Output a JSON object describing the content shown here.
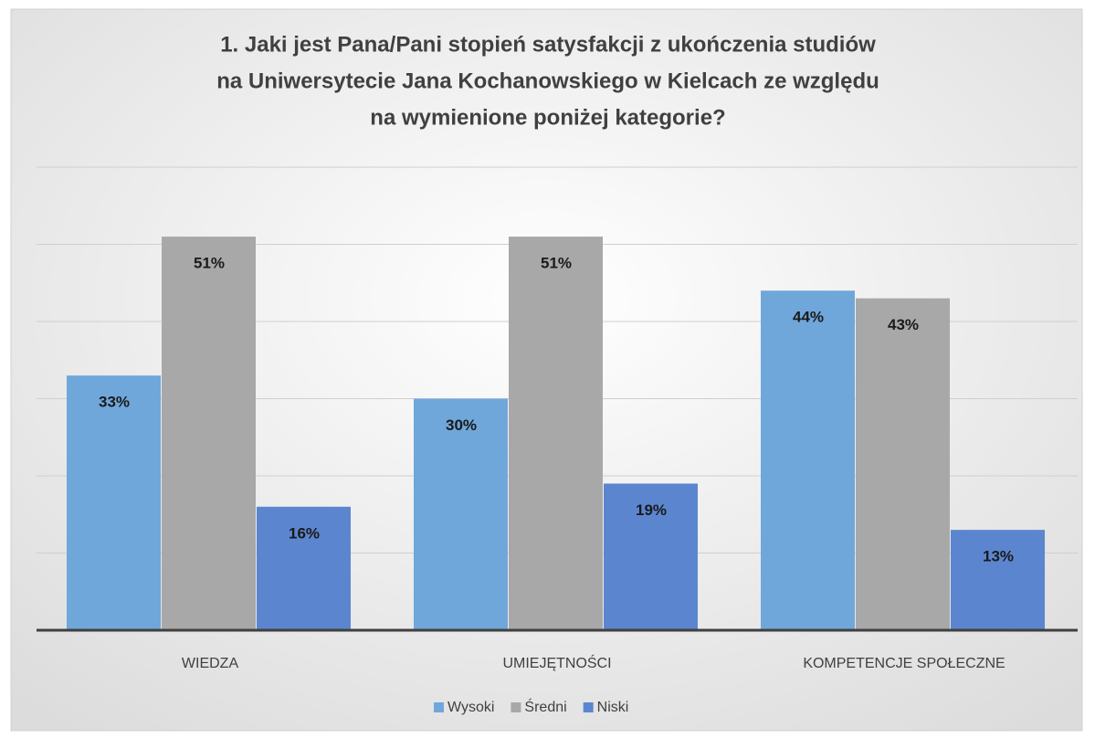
{
  "chart_data": {
    "type": "bar",
    "title": [
      "1. Jaki jest Pana/Pani stopień satysfakcji z ukończenia studiów",
      "na Uniwersytecie Jana Kochanowskiego w Kielcach ze względu",
      "na wymienione poniżej kategorie?"
    ],
    "categories": [
      "WIEDZA",
      "UMIEJĘTNOŚCI",
      "KOMPETENCJE SPOŁECZNE"
    ],
    "series": [
      {
        "name": "Wysoki",
        "color": "#70a7db",
        "values": [
          33,
          30,
          44
        ],
        "value_labels": [
          "33%",
          "30%",
          "44%"
        ]
      },
      {
        "name": "Średni",
        "color": "#a8a8a8",
        "values": [
          51,
          51,
          43
        ],
        "value_labels": [
          "51%",
          "51%",
          "43%"
        ]
      },
      {
        "name": "Niski",
        "color": "#5b86cf",
        "values": [
          16,
          19,
          13
        ],
        "value_labels": [
          "16%",
          "19%",
          "13%"
        ]
      }
    ],
    "ylim": [
      0,
      60
    ],
    "yticks": [
      10,
      20,
      30,
      40,
      50,
      60
    ],
    "grid": true,
    "legend": "bottom"
  }
}
